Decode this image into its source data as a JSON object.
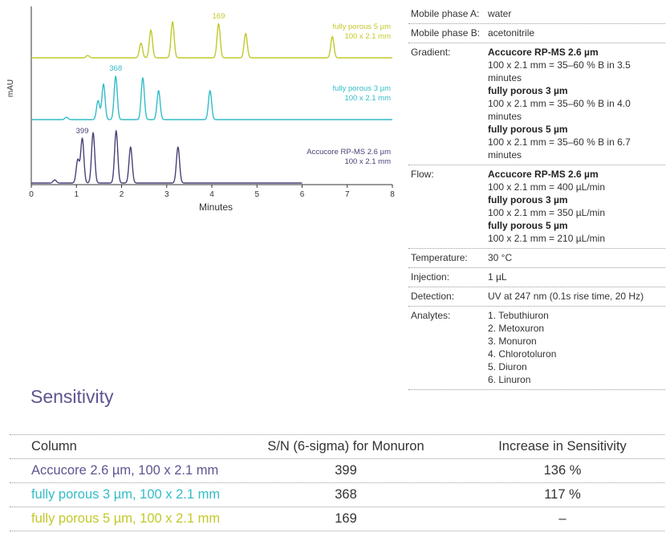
{
  "chart_data": {
    "type": "line",
    "xlabel": "Minutes",
    "ylabel": "mAU",
    "xlim": [
      0,
      8
    ],
    "x_ticks": [
      "0",
      "1",
      "2",
      "3",
      "4",
      "5",
      "6",
      "7",
      "8"
    ],
    "series": [
      {
        "name": "fully porous 5 µm",
        "sublabel": "100 x 2.1 mm",
        "color": "#c3c82a",
        "end_time": 8,
        "peaks": [
          {
            "t": 1.25,
            "h": 0.06
          },
          {
            "t": 2.43,
            "h": 0.38
          },
          {
            "t": 2.65,
            "h": 0.72
          },
          {
            "t": 3.13,
            "h": 0.93
          },
          {
            "t": 4.15,
            "h": 0.88
          },
          {
            "t": 4.75,
            "h": 0.63
          },
          {
            "t": 6.67,
            "h": 0.55
          }
        ],
        "annotation": {
          "text": "169",
          "t": 4.15
        }
      },
      {
        "name": "fully porous 3 µm",
        "sublabel": "100 x 2.1 mm",
        "color": "#33bcc8",
        "end_time": 8,
        "peaks": [
          {
            "t": 0.78,
            "h": 0.06
          },
          {
            "t": 1.48,
            "h": 0.49
          },
          {
            "t": 1.6,
            "h": 0.92
          },
          {
            "t": 1.87,
            "h": 1.12
          },
          {
            "t": 2.47,
            "h": 1.08
          },
          {
            "t": 2.82,
            "h": 0.75
          },
          {
            "t": 3.96,
            "h": 0.75
          }
        ],
        "annotation": {
          "text": "368",
          "t": 1.87
        }
      },
      {
        "name": "Accucore RP-MS 2.6 µm",
        "sublabel": "100 x 2.1 mm",
        "color": "#4a4176",
        "end_time": 6,
        "peaks": [
          {
            "t": 0.52,
            "h": 0.08
          },
          {
            "t": 1.03,
            "h": 0.6
          },
          {
            "t": 1.13,
            "h": 1.15
          },
          {
            "t": 1.37,
            "h": 1.3
          },
          {
            "t": 1.88,
            "h": 1.35
          },
          {
            "t": 2.2,
            "h": 0.93
          },
          {
            "t": 3.25,
            "h": 0.93
          }
        ],
        "annotation": {
          "text": "399",
          "t": 1.13
        }
      }
    ]
  },
  "params": [
    {
      "key": "Mobile phase A:",
      "lines": [
        {
          "text": "water",
          "bold": false
        }
      ]
    },
    {
      "key": "Mobile phase B:",
      "lines": [
        {
          "text": "acetonitrile",
          "bold": false
        }
      ]
    },
    {
      "key": "Gradient:",
      "lines": [
        {
          "text": "Accucore RP-MS 2.6 µm",
          "bold": true
        },
        {
          "text": "100 x 2.1 mm = 35–60 % B in 3.5 minutes",
          "bold": false
        },
        {
          "text": "fully porous 3 µm",
          "bold": true
        },
        {
          "text": "100 x 2.1 mm = 35–60 % B in 4.0 minutes",
          "bold": false
        },
        {
          "text": "fully porous 5 µm",
          "bold": true
        },
        {
          "text": "100 x 2.1 mm = 35–60 % B in 6.7 minutes",
          "bold": false
        }
      ]
    },
    {
      "key": "Flow:",
      "lines": [
        {
          "text": "Accucore RP-MS 2.6 µm",
          "bold": true
        },
        {
          "text": "100 x 2.1 mm = 400 µL/min",
          "bold": false
        },
        {
          "text": "fully porous 3 µm",
          "bold": true
        },
        {
          "text": "100 x 2.1 mm = 350 µL/min",
          "bold": false
        },
        {
          "text": "fully porous 5 µm",
          "bold": true
        },
        {
          "text": "100 x 2.1 mm = 210 µL/min",
          "bold": false
        }
      ]
    },
    {
      "key": "Temperature:",
      "lines": [
        {
          "text": "30 °C",
          "bold": false
        }
      ]
    },
    {
      "key": "Injection:",
      "lines": [
        {
          "text": "1 µL",
          "bold": false
        }
      ]
    },
    {
      "key": "Detection:",
      "lines": [
        {
          "text": "UV at 247 nm (0.1s rise time, 20 Hz)",
          "bold": false
        }
      ]
    },
    {
      "key": "Analytes:",
      "lines": [
        {
          "text": "1. Tebuthiuron",
          "bold": false
        },
        {
          "text": "2. Metoxuron",
          "bold": false
        },
        {
          "text": "3. Monuron",
          "bold": false
        },
        {
          "text": "4. Chlorotoluron",
          "bold": false
        },
        {
          "text": "5. Diuron",
          "bold": false
        },
        {
          "text": "6. Linuron",
          "bold": false
        }
      ]
    }
  ],
  "sensitivity": {
    "title": "Sensitivity",
    "headers": [
      "Column",
      "S/N (6-sigma) for Monuron",
      "Increase in Sensitivity"
    ],
    "rows": [
      {
        "column": "Accucore 2.6 µm, 100 x 2.1 mm",
        "sn": "399",
        "increase": "136 %",
        "color": "#5d5591"
      },
      {
        "column": "fully porous 3 µm, 100 x 2.1 mm",
        "sn": "368",
        "increase": "117 %",
        "color": "#33bcc8"
      },
      {
        "column": "fully porous 5 µm, 100 x 2.1 mm",
        "sn": "169",
        "increase": "–",
        "color": "#c3c82a"
      }
    ]
  }
}
